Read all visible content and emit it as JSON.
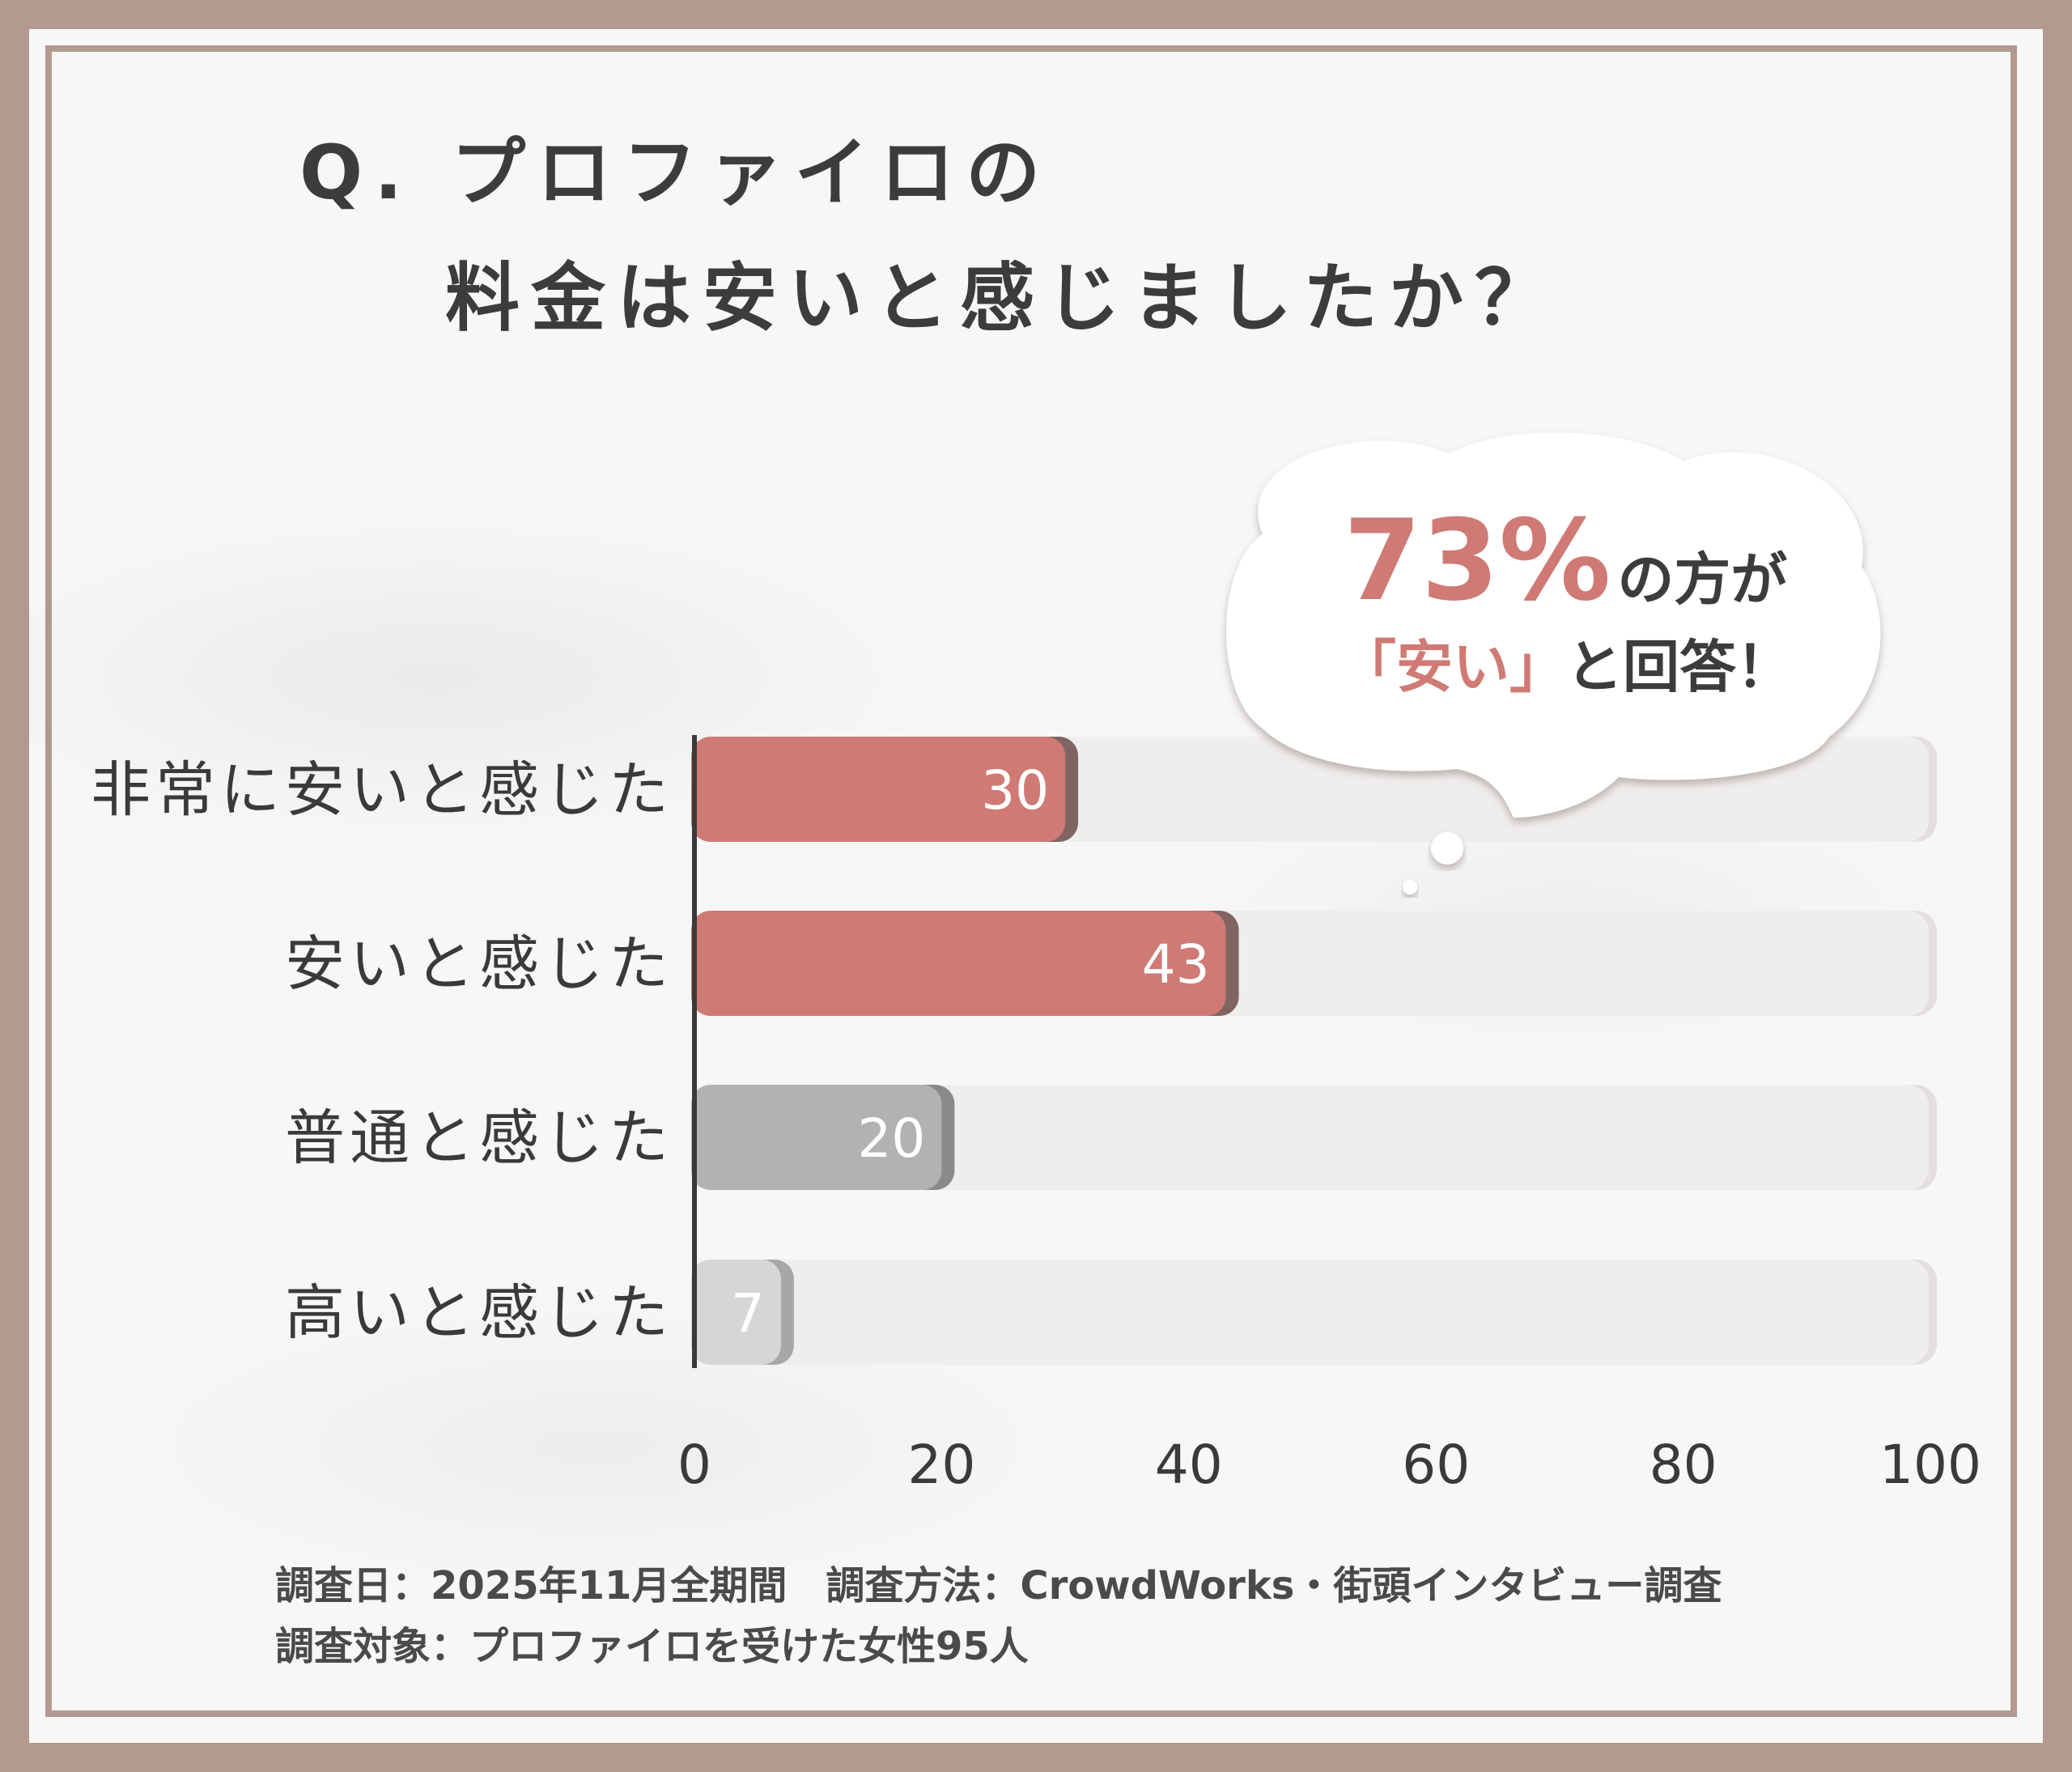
{
  "title": {
    "line1": "Q. プロファイロの",
    "line2": "料金は安いと感じましたか？"
  },
  "callout": {
    "highlight": "73%",
    "line1_rest": "の方が",
    "line2_accent": "「安い」",
    "line2_rest": "と回答！"
  },
  "footer": {
    "line1": "調査日：2025年11月全期間　調査方法：CrowdWorks・街頭インタビュー調査",
    "line2": "調査対象：プロファイロを受けた女性95人"
  },
  "colors": {
    "accent": "#cf7a74",
    "accent_shadow": "#7f6462",
    "gray": "#b3b1b1",
    "gray_shadow": "#8c8989",
    "light_gray": "#d7d6d6",
    "track": "#f0eeed",
    "frame": "#b29a90"
  },
  "chart_data": {
    "type": "bar",
    "orientation": "horizontal",
    "categories": [
      "非常に安いと感じた",
      "安いと感じた",
      "普通と感じた",
      "高いと感じた"
    ],
    "values": [
      30,
      43,
      20,
      7
    ],
    "value_labels": [
      "30",
      "43",
      "20",
      "7"
    ],
    "bar_colors": [
      "#cf7a74",
      "#cf7a74",
      "#b3b1b1",
      "#d7d6d6"
    ],
    "bar_shadows": [
      "#7f6462",
      "#7f6462",
      "#8c8989",
      "#a9a6a6"
    ],
    "xlim": [
      0,
      100
    ],
    "xticks": [
      0,
      20,
      40,
      60,
      80,
      100
    ],
    "xtick_labels": [
      "0",
      "20",
      "40",
      "60",
      "80",
      "100"
    ],
    "grid": false,
    "legend": "none"
  }
}
